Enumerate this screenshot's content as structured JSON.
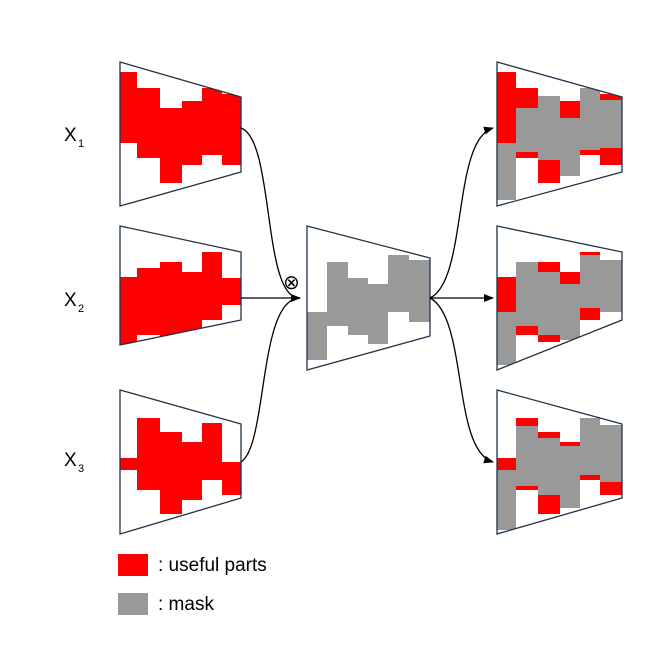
{
  "inputs": [
    {
      "id": "x1",
      "label": "X",
      "subscript": "1"
    },
    {
      "id": "x2",
      "label": "X",
      "subscript": "2"
    },
    {
      "id": "x3",
      "label": "X",
      "subscript": "3"
    }
  ],
  "operator_symbol": "⊗",
  "legend": [
    {
      "swatch": "red",
      "text": ": useful parts"
    },
    {
      "swatch": "gray",
      "text": ": mask"
    }
  ],
  "colors": {
    "useful": "#ff0000",
    "mask": "#999999",
    "outline": "#1f3347",
    "arrow": "#000000"
  }
}
